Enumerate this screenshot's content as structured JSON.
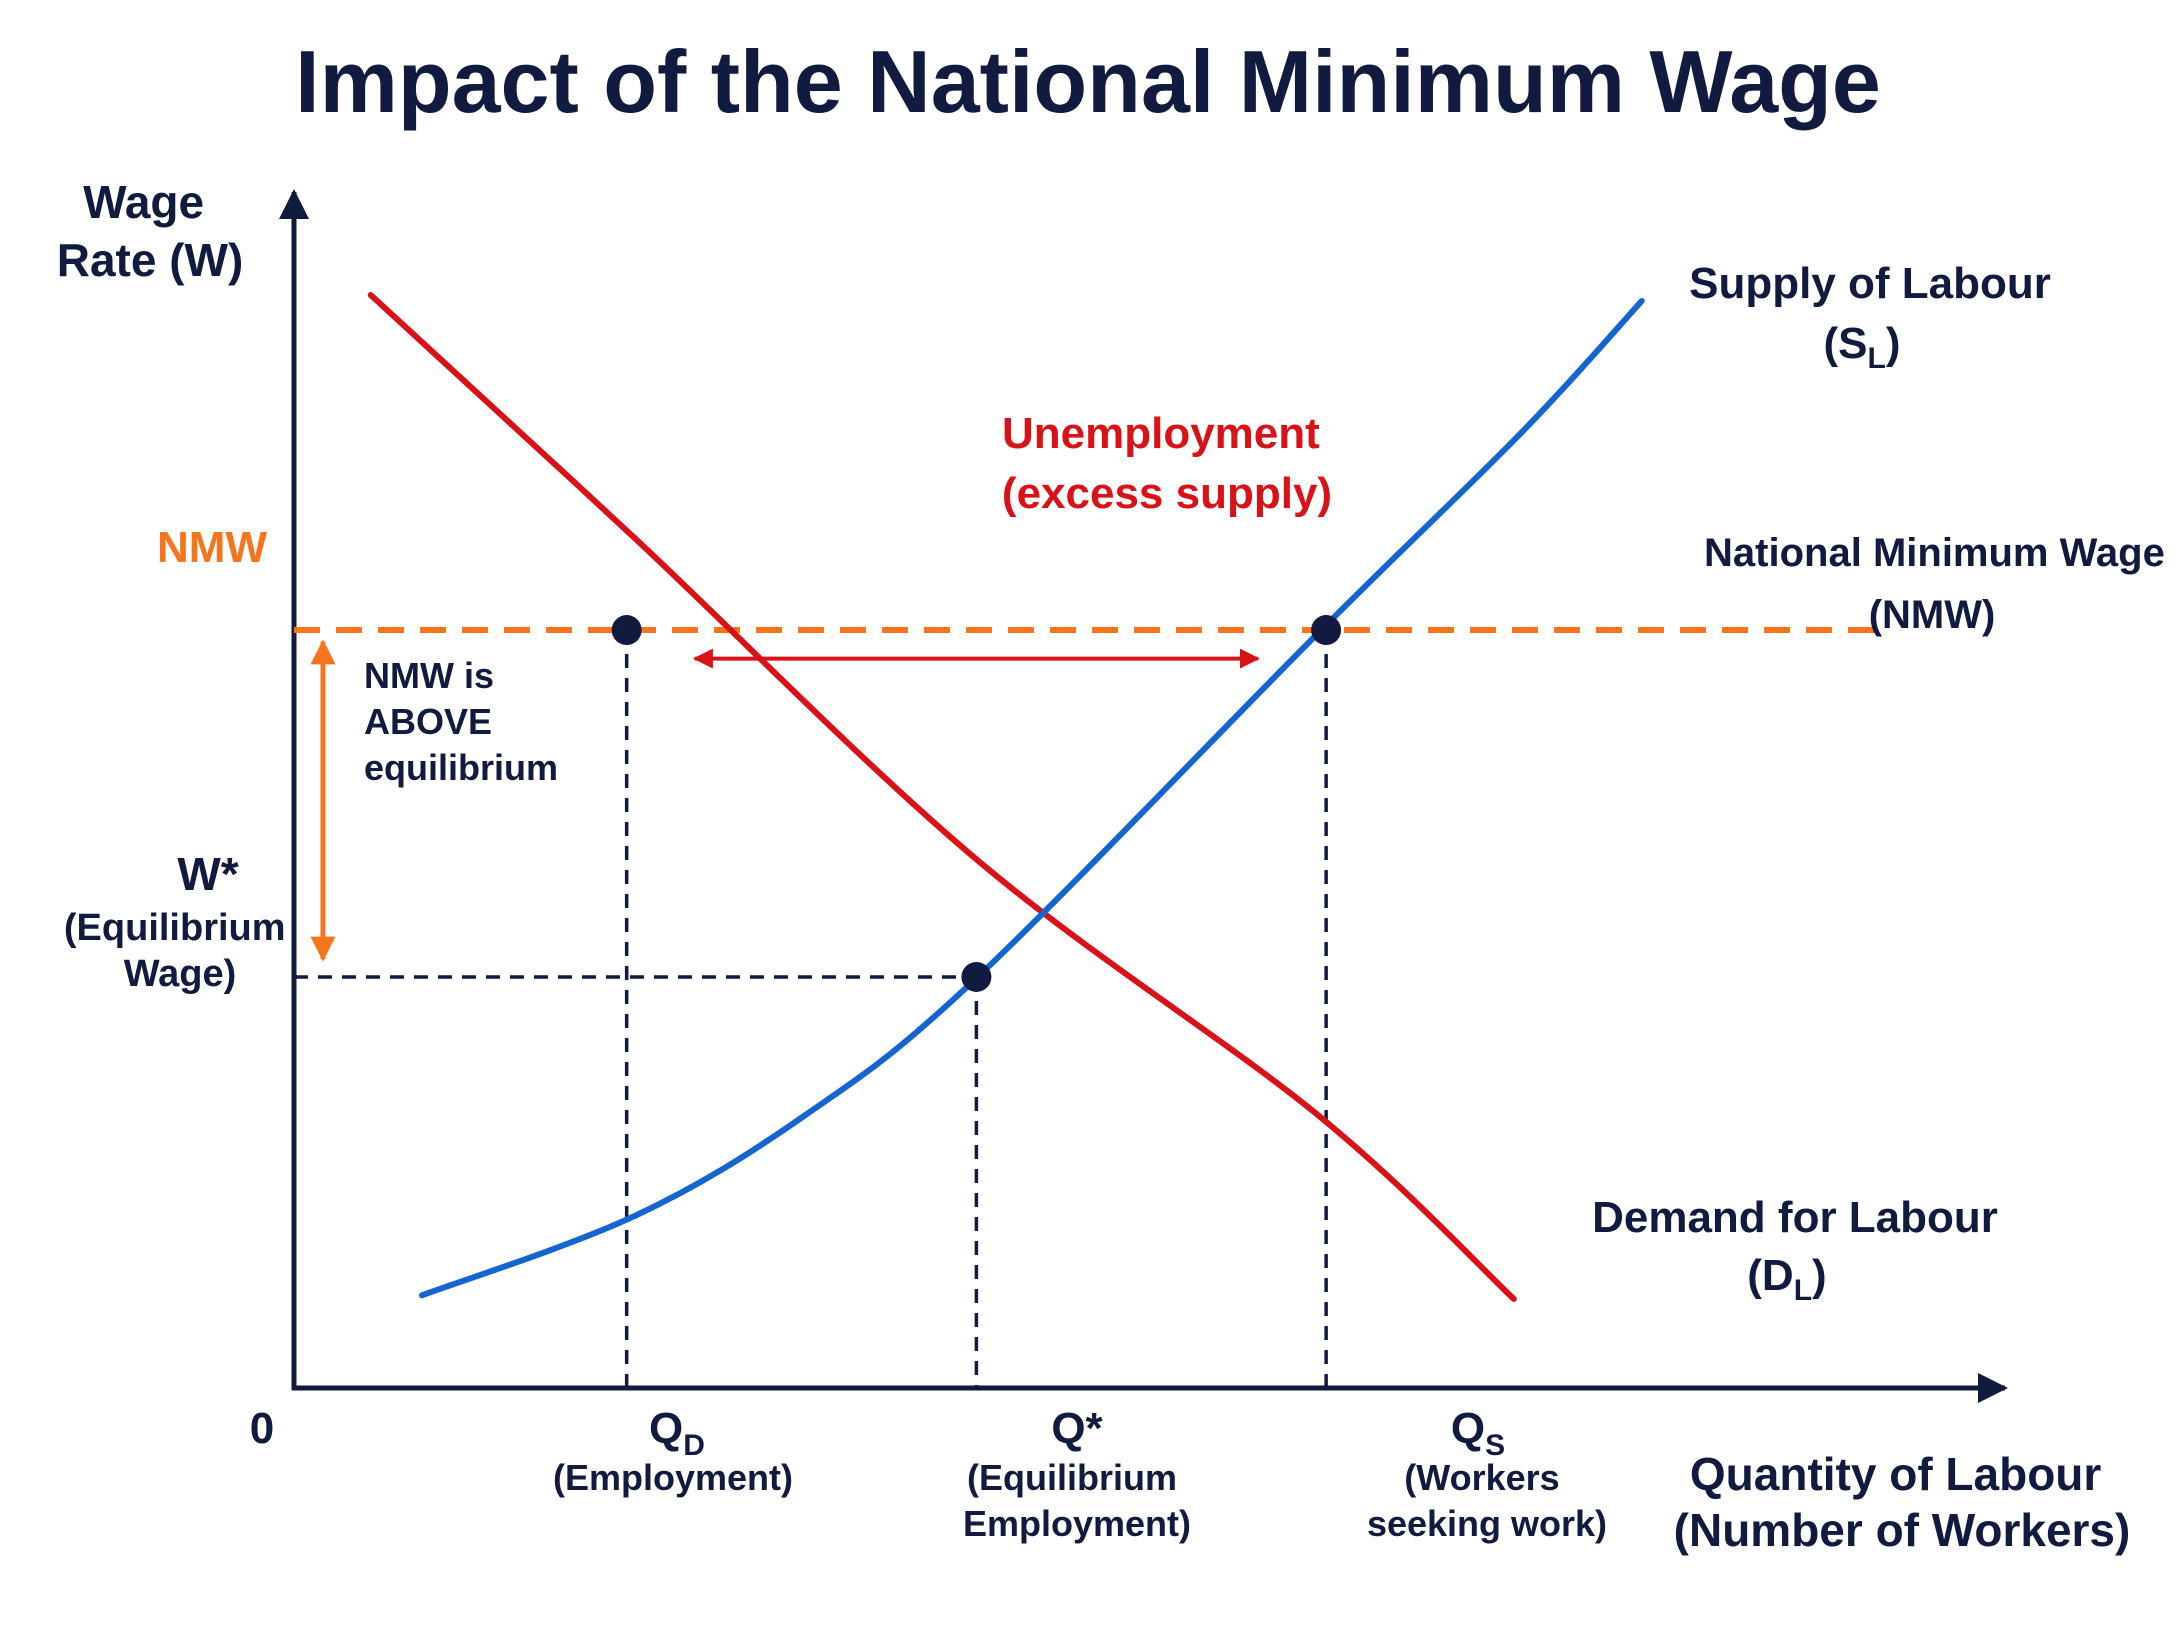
{
  "colors": {
    "navy": "#111a3f",
    "demand": "#d91218",
    "supply": "#1565d0",
    "nmw": "#f5741c",
    "background": "#ffffff"
  },
  "chart_data": {
    "type": "line",
    "title": "Impact of the National Minimum Wage",
    "ylabel": [
      "Wage",
      "Rate (W)"
    ],
    "xlabel": [
      "Quantity of Labour",
      "(Number of Workers)"
    ],
    "origin_label": "0",
    "xlim": [
      0,
      10
    ],
    "ylim": [
      0,
      10
    ],
    "grid": false,
    "series": [
      {
        "key": "demand",
        "name_main": "Demand for Labour",
        "name_sym": "(D",
        "name_sub": "L",
        "name_close": ")",
        "points": [
          [
            0.45,
            9.2
          ],
          [
            2.0,
            7.15
          ],
          [
            4.0,
            4.45
          ],
          [
            6.0,
            2.3
          ],
          [
            7.15,
            0.75
          ]
        ]
      },
      {
        "key": "supply",
        "name_main": "Supply of Labour",
        "name_sym": "(S",
        "name_sub": "L",
        "name_close": ")",
        "points": [
          [
            0.75,
            0.78
          ],
          [
            2.0,
            1.45
          ],
          [
            3.0,
            2.3
          ],
          [
            4.0,
            3.45
          ],
          [
            6.0,
            6.35
          ],
          [
            7.2,
            8.05
          ],
          [
            7.9,
            9.15
          ]
        ]
      }
    ],
    "nmw_line": {
      "y": 6.38,
      "tick_label": "NMW",
      "label_lines": [
        "National Minimum Wage",
        "(NMW)"
      ]
    },
    "equilibrium": {
      "x": 4.0,
      "y": 3.46,
      "w_label": "W*",
      "w_desc": [
        "(Equilibrium",
        "Wage)"
      ]
    },
    "points": [
      {
        "key": "qd",
        "x": 1.95,
        "y": 6.38
      },
      {
        "key": "qs",
        "x": 6.05,
        "y": 6.38
      },
      {
        "key": "eq",
        "x": 4.0,
        "y": 3.46
      }
    ],
    "x_markers": [
      {
        "key": "qd",
        "x": 1.95,
        "sym": "Q",
        "sub": "D",
        "desc": [
          "(Employment)"
        ]
      },
      {
        "key": "qstar",
        "x": 4.0,
        "sym": "Q*",
        "sub": "",
        "desc": [
          "(Equilibrium",
          "Employment)"
        ]
      },
      {
        "key": "qs",
        "x": 6.05,
        "sym": "Q",
        "sub": "S",
        "desc": [
          "(Workers",
          "seeking work)"
        ]
      }
    ],
    "annotations": {
      "unemployment": [
        "Unemployment",
        "(excess supply)"
      ],
      "nmw_gap": [
        "NMW is",
        "ABOVE",
        "equilibrium"
      ]
    }
  }
}
